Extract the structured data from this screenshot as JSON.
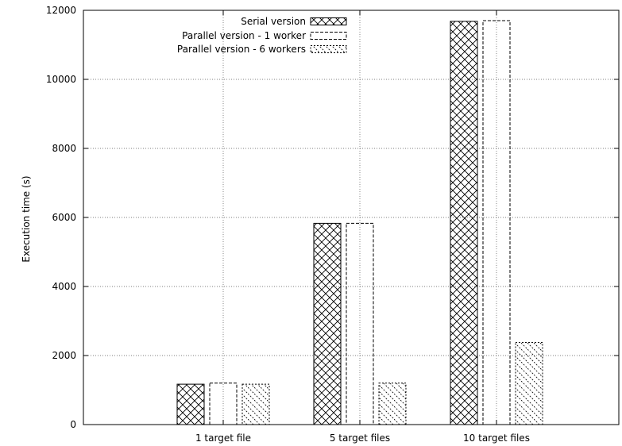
{
  "chart_data": {
    "type": "bar",
    "title": "",
    "xlabel": "",
    "ylabel": "Execution time (s)",
    "ylim": [
      0,
      12000
    ],
    "yticks": [
      0,
      2000,
      4000,
      6000,
      8000,
      10000,
      12000
    ],
    "grid": true,
    "legend_position": "top-center",
    "categories": [
      "1 target file",
      "5 target files",
      "10 target files"
    ],
    "series": [
      {
        "name": "Serial version",
        "values": [
          1170,
          5830,
          11680
        ],
        "pattern": "crosshatch"
      },
      {
        "name": "Parallel version - 1 worker",
        "values": [
          1200,
          5830,
          11700
        ],
        "pattern": "dashed-outline"
      },
      {
        "name": "Parallel version - 6 workers",
        "values": [
          1170,
          1200,
          2380
        ],
        "pattern": "diagonal-dotted"
      }
    ]
  }
}
